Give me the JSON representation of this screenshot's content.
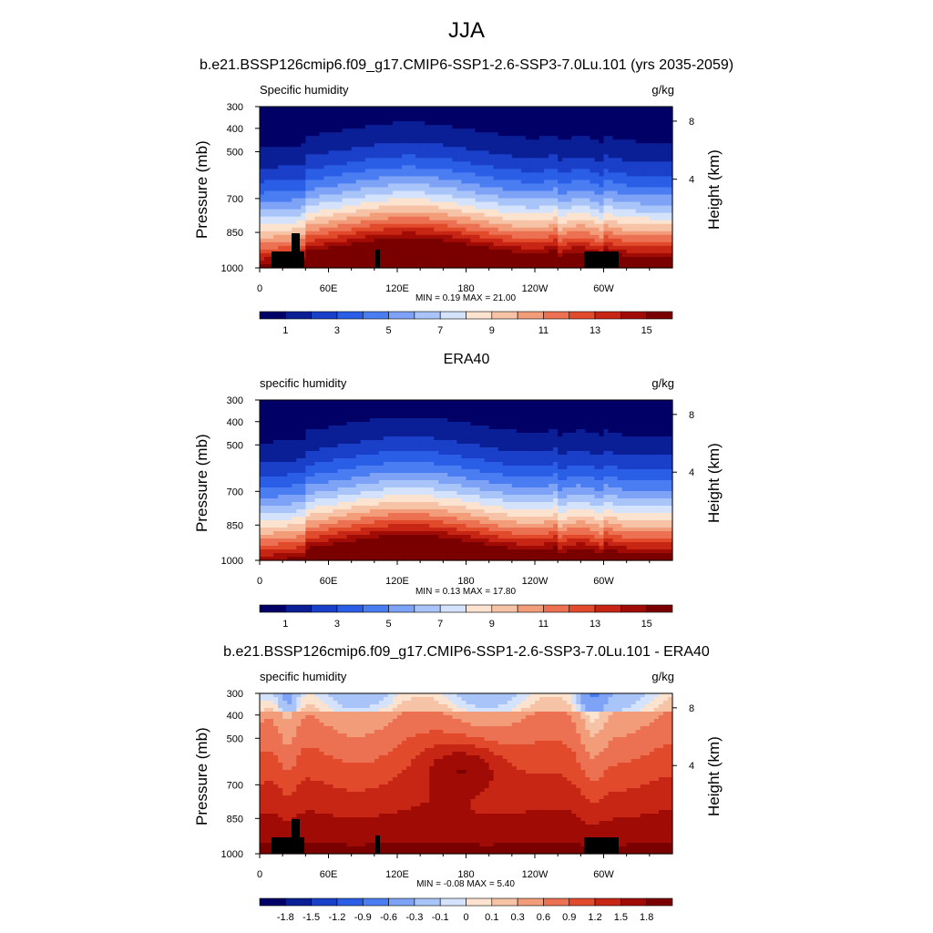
{
  "figure": {
    "title": "JJA",
    "case_subtitle": "b.e21.BSSP126cmip6.f09_g17.CMIP6-SSP1-2.6-SSP3-7.0Lu.101 (yrs 2035-2059)",
    "obs_subtitle": "ERA40",
    "diff_subtitle": "b.e21.BSSP126cmip6.f09_g17.CMIP6-SSP1-2.6-SSP3-7.0Lu.101 - ERA40"
  },
  "chart_data": [
    {
      "type": "heatmap",
      "panel": "model",
      "left_label": "Specific humidity",
      "right_label": "g/kg",
      "ylabel": "Pressure (mb)",
      "ylabel_right": "Height (km)",
      "x_ticks": [
        "0",
        "60E",
        "120E",
        "180",
        "120W",
        "60W"
      ],
      "y_ticks": [
        "300",
        "400",
        "500",
        "700",
        "850",
        "1000"
      ],
      "y2_ticks": [
        "8",
        "4"
      ],
      "min": "0.19",
      "max": "21.00",
      "minmax_text": "MIN =   0.19  MAX =  21.00",
      "colorbar_labels": [
        "1",
        "3",
        "5",
        "7",
        "9",
        "11",
        "13",
        "15"
      ]
    },
    {
      "type": "heatmap",
      "panel": "obs",
      "left_label": "specific humidity",
      "right_label": "g/kg",
      "ylabel": "Pressure (mb)",
      "ylabel_right": "Height (km)",
      "x_ticks": [
        "0",
        "60E",
        "120E",
        "180",
        "120W",
        "60W"
      ],
      "y_ticks": [
        "300",
        "400",
        "500",
        "700",
        "850",
        "1000"
      ],
      "y2_ticks": [
        "8",
        "4"
      ],
      "min": "0.13",
      "max": "17.80",
      "minmax_text": "MIN =   0.13  MAX =  17.80",
      "colorbar_labels": [
        "1",
        "3",
        "5",
        "7",
        "9",
        "11",
        "13",
        "15"
      ]
    },
    {
      "type": "heatmap",
      "panel": "difference",
      "left_label": "specific humidity",
      "right_label": "g/kg",
      "ylabel": "Pressure (mb)",
      "ylabel_right": "Height (km)",
      "x_ticks": [
        "0",
        "60E",
        "120E",
        "180",
        "120W",
        "60W"
      ],
      "y_ticks": [
        "300",
        "400",
        "500",
        "700",
        "850",
        "1000"
      ],
      "y2_ticks": [
        "8",
        "4"
      ],
      "min": "-0.08",
      "max": "5.40",
      "minmax_text": "MIN =  -0.08  MAX =   5.40",
      "colorbar_labels": [
        "-1.8",
        "-1.5",
        "-1.2",
        "-0.9",
        "-0.6",
        "-0.3",
        "-0.1",
        "0",
        "0.1",
        "0.3",
        "0.6",
        "0.9",
        "1.2",
        "1.5",
        "1.8"
      ]
    }
  ],
  "palette": {
    "abs": [
      "#000066",
      "#0a1e96",
      "#1a3fc8",
      "#2a5ee6",
      "#4a7df2",
      "#7ea3f6",
      "#a9c4f8",
      "#d4e3fb",
      "#fbe3d0",
      "#f7c3a6",
      "#f29c7a",
      "#ec7152",
      "#e24a2c",
      "#c82614",
      "#a00c05",
      "#7a0000"
    ],
    "diff": [
      "#000066",
      "#0a1e96",
      "#1a3fc8",
      "#2a5ee6",
      "#4a7df2",
      "#7ea3f6",
      "#a9c4f8",
      "#d4e3fb",
      "#fbe3d0",
      "#f7c3a6",
      "#f29c7a",
      "#ec7152",
      "#e24a2c",
      "#c82614",
      "#a00c05",
      "#7a0000"
    ]
  }
}
